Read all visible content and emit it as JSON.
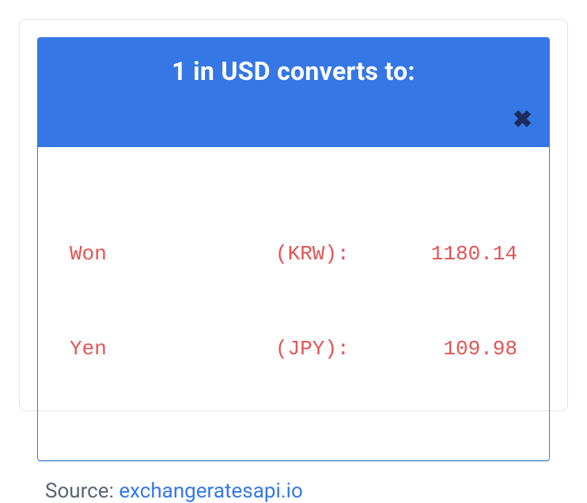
{
  "header": {
    "title": "1 in USD converts to:",
    "bg_color": "#3578e5",
    "title_color": "#ffffff",
    "title_fontsize": 32
  },
  "close": {
    "glyph": "✖",
    "color": "#1b2b5a"
  },
  "rates_box": {
    "border_color": "#3578e5",
    "text_color": "#e55353",
    "font_family": "monospace",
    "fontsize": 26,
    "rows": [
      {
        "name": "Won",
        "code": "(KRW):",
        "value": "1180.14"
      },
      {
        "name": "Yen",
        "code": "(JPY):",
        "value": "109.98"
      }
    ]
  },
  "source": {
    "label": "Source: ",
    "link_text": "exchangeratesapi.io",
    "label_color": "#5a6572",
    "link_color": "#3578e5"
  },
  "card": {
    "border_color": "#e1e4e8",
    "background": "#ffffff"
  }
}
